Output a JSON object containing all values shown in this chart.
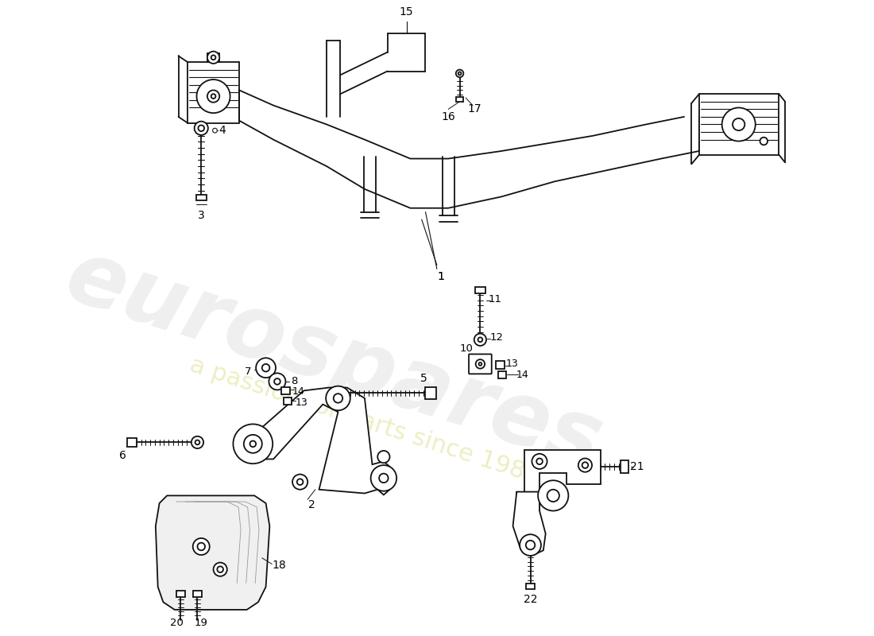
{
  "bg_color": "#ffffff",
  "lc": "#111111",
  "lw": 1.3,
  "wm1": "eurospares",
  "wm2": "a passion for parts since 1985",
  "wm1_color": "#cccccc",
  "wm2_color": "#dddd88"
}
